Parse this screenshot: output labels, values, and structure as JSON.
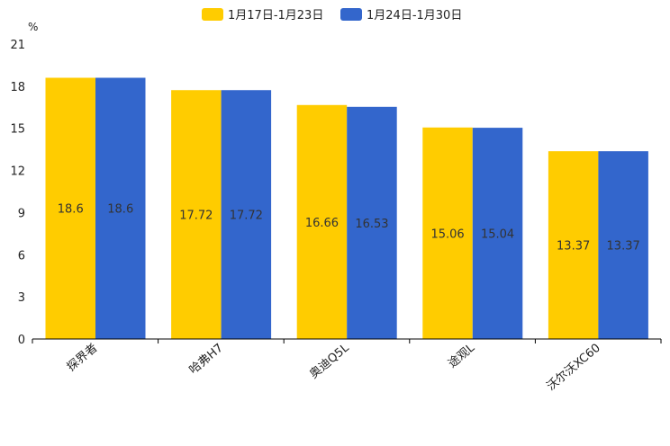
{
  "chart_data": {
    "type": "bar",
    "unit": "%",
    "categories": [
      "探界者",
      "哈弗H7",
      "奥迪Q5L",
      "途观L",
      "沃尔沃XC60"
    ],
    "series": [
      {
        "name": "1月17日-1月23日",
        "color": "#FFCC00",
        "values": [
          18.6,
          17.72,
          16.66,
          15.06,
          13.37
        ]
      },
      {
        "name": "1月24日-1月30日",
        "color": "#3366CC",
        "values": [
          18.6,
          17.72,
          16.53,
          15.04,
          13.37
        ]
      }
    ],
    "ylim": [
      0,
      21
    ],
    "yticks": [
      0,
      3,
      6,
      9,
      12,
      15,
      18,
      21
    ],
    "legend_position": "top-center",
    "grid": false
  }
}
